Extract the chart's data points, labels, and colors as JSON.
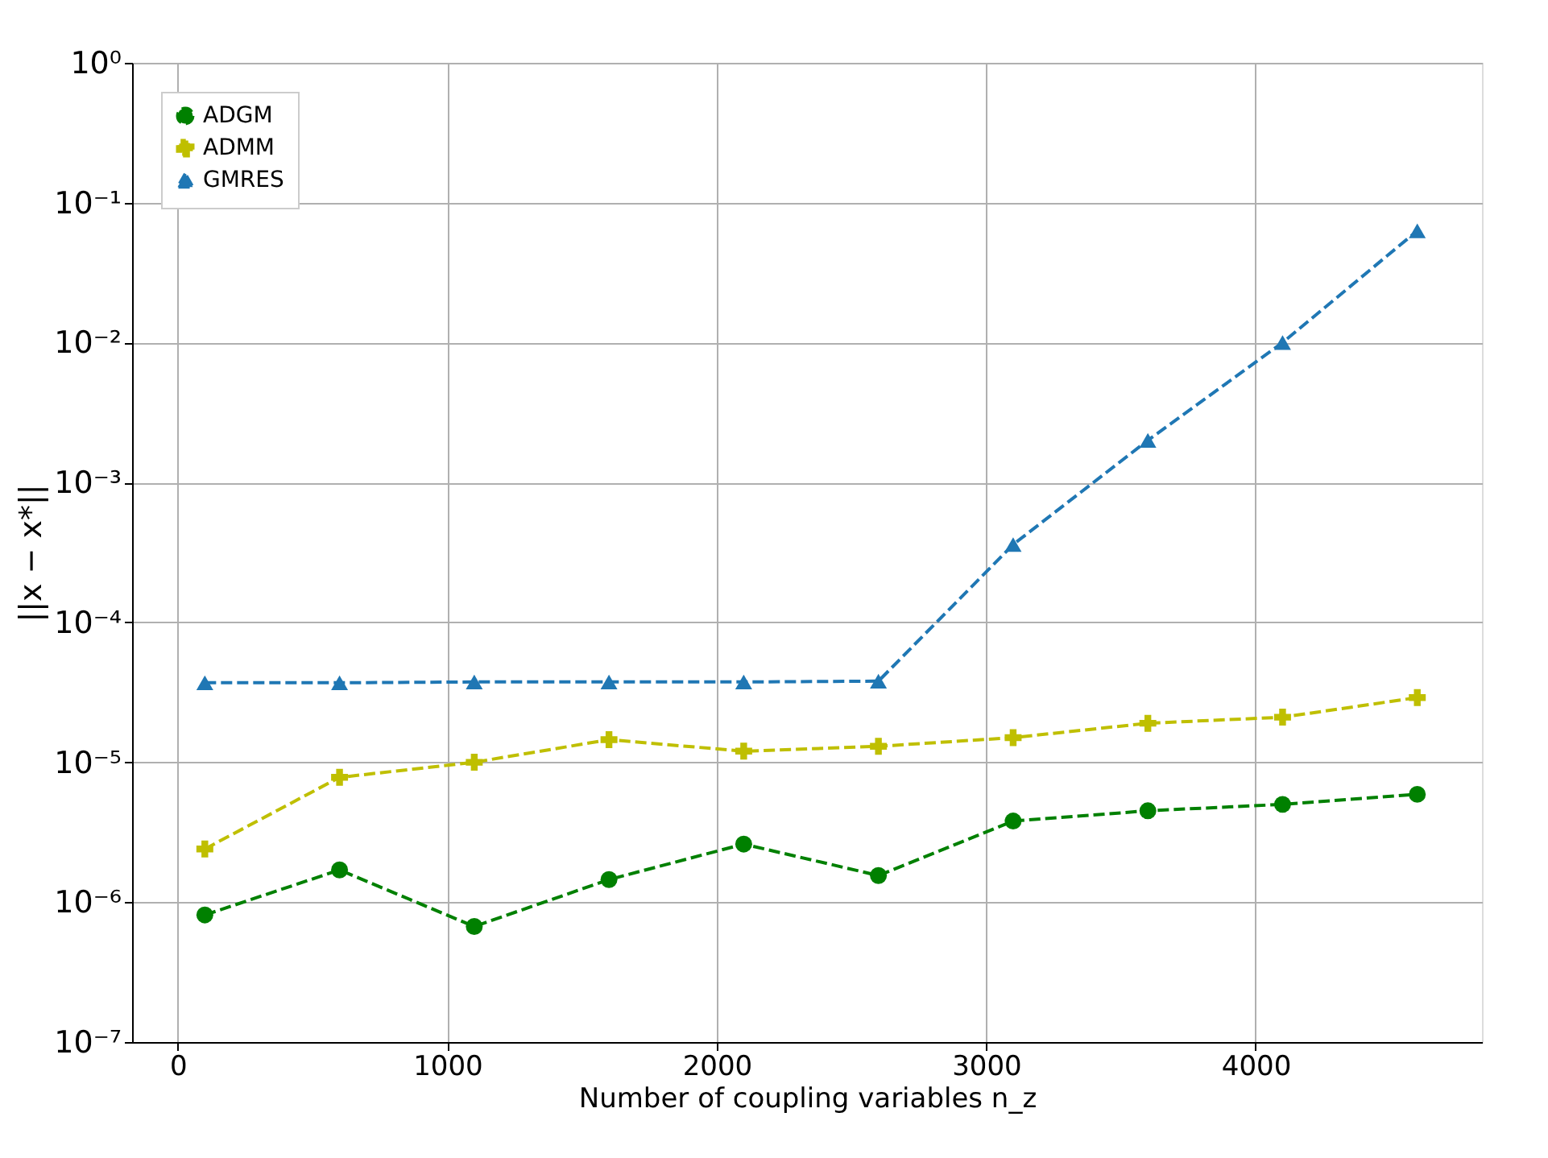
{
  "chart_data": {
    "type": "line",
    "xlabel": "Number of coupling variables n_z",
    "ylabel": "||x − x*||",
    "x": [
      100,
      600,
      1100,
      1600,
      2100,
      2600,
      3100,
      3600,
      4100,
      4600
    ],
    "series": [
      {
        "name": "ADGM",
        "color": "#008000",
        "marker": "circle",
        "line_style": "dashed",
        "values": [
          8.1e-07,
          1.7e-06,
          6.7e-07,
          1.45e-06,
          2.6e-06,
          1.55e-06,
          3.8e-06,
          4.5e-06,
          5e-06,
          5.9e-06
        ]
      },
      {
        "name": "ADMM",
        "color": "#bfbf00",
        "marker": "cross",
        "line_style": "dashed",
        "values": [
          2.4e-06,
          7.8e-06,
          1e-05,
          1.45e-05,
          1.2e-05,
          1.3e-05,
          1.5e-05,
          1.9e-05,
          2.1e-05,
          2.9e-05
        ]
      },
      {
        "name": "GMRES",
        "color": "#1f77b4",
        "marker": "triangle",
        "line_style": "dashed",
        "values": [
          3.7e-05,
          3.7e-05,
          3.75e-05,
          3.75e-05,
          3.75e-05,
          3.8e-05,
          0.00036,
          0.002,
          0.01,
          0.063
        ]
      }
    ],
    "log": "y",
    "xlim": [
      -170,
      4840
    ],
    "xticks": [
      0,
      1000,
      2000,
      3000,
      4000
    ],
    "ylim": [
      1e-07,
      1
    ],
    "yticks": [
      {
        "value": 1e-07,
        "label": "10⁻⁷"
      },
      {
        "value": 1e-06,
        "label": "10⁻⁶"
      },
      {
        "value": 1e-05,
        "label": "10⁻⁵"
      },
      {
        "value": 0.0001,
        "label": "10⁻⁴"
      },
      {
        "value": 0.001,
        "label": "10⁻³"
      },
      {
        "value": 0.01,
        "label": "10⁻²"
      },
      {
        "value": 0.1,
        "label": "10⁻¹"
      },
      {
        "value": 1,
        "label": "10⁰"
      }
    ],
    "grid": true,
    "legend": "top left"
  }
}
